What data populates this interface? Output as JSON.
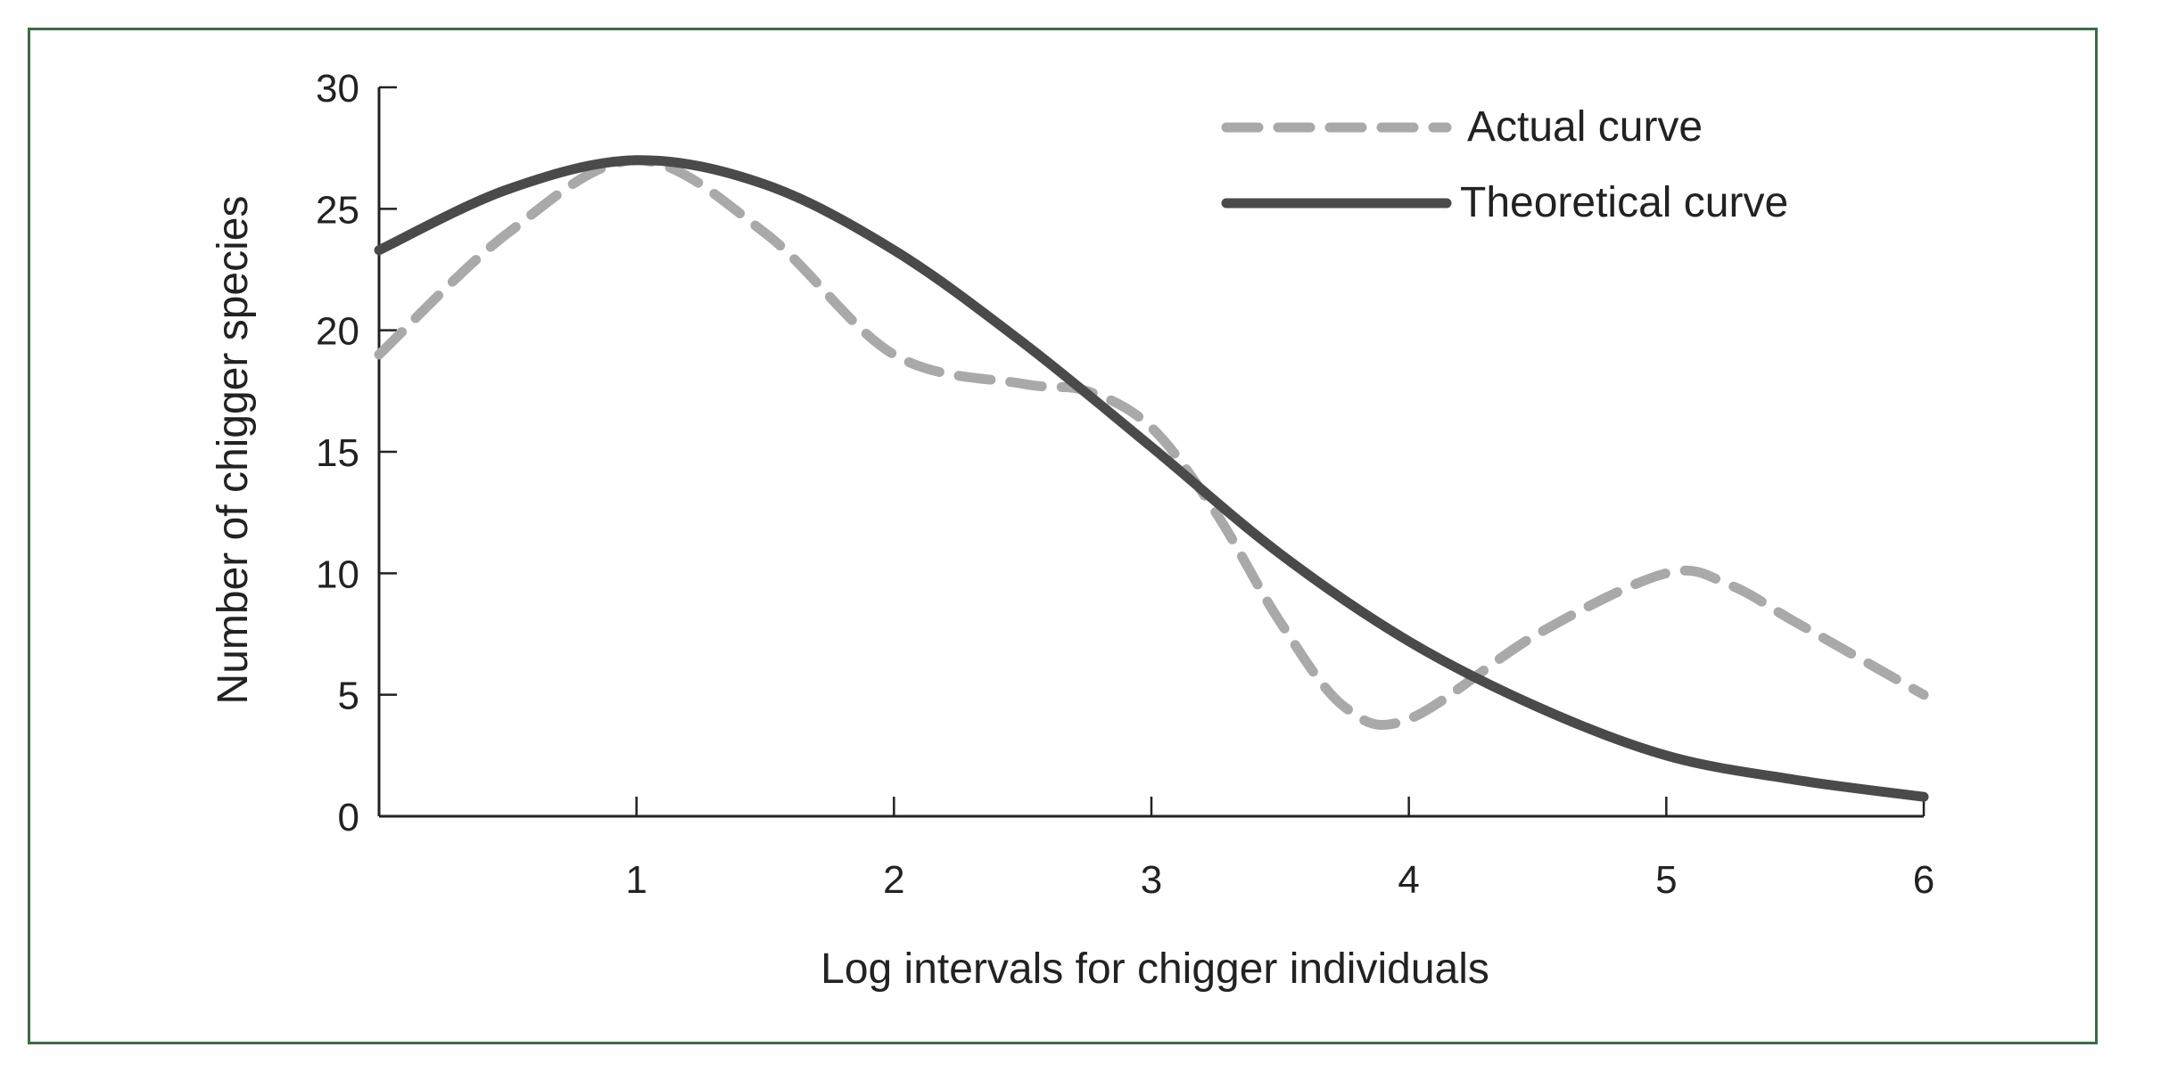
{
  "chart_data": {
    "type": "line",
    "title": "",
    "xlabel": "Log intervals for chigger individuals",
    "ylabel": "Number of chigger species",
    "xlim": [
      0,
      6
    ],
    "ylim": [
      0,
      30
    ],
    "x_ticks": [
      1,
      2,
      3,
      4,
      5,
      6
    ],
    "y_ticks": [
      0,
      5,
      10,
      15,
      20,
      25,
      30
    ],
    "grid": false,
    "legend_position": "top-right",
    "series": [
      {
        "name": "Actual curve",
        "style": "dashed",
        "color": "#a9a9a9",
        "x": [
          0,
          0.5,
          1,
          1.5,
          2,
          2.5,
          2.75,
          3,
          3.25,
          3.5,
          3.75,
          4,
          4.5,
          5,
          5.25,
          5.5,
          6
        ],
        "y": [
          19,
          24,
          27,
          24,
          19,
          17.8,
          17.5,
          16,
          12.5,
          8,
          4.5,
          4,
          7.5,
          10,
          9.5,
          8,
          5
        ]
      },
      {
        "name": "Theoretical curve",
        "style": "solid",
        "color": "#4a4a4a",
        "x": [
          0,
          0.5,
          1,
          1.5,
          2,
          2.5,
          3,
          3.5,
          4,
          4.5,
          5,
          5.5,
          6
        ],
        "y": [
          23.3,
          25.8,
          27,
          26,
          23.3,
          19.5,
          15.2,
          10.8,
          7.2,
          4.5,
          2.5,
          1.5,
          0.8
        ]
      }
    ]
  }
}
